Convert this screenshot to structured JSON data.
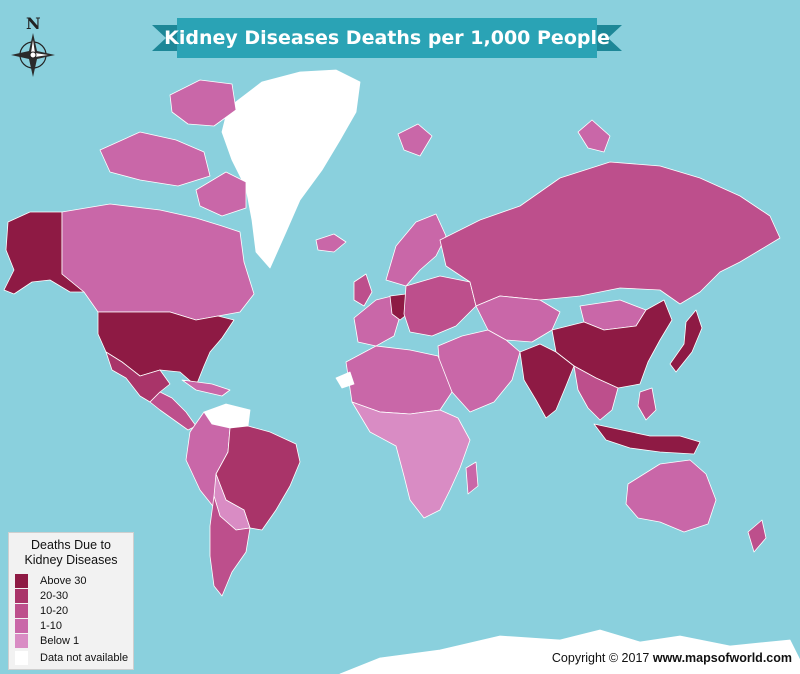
{
  "title": "Kidney Diseases Deaths per 1,000 People",
  "compass": {
    "north_label": "N",
    "icon": "compass-rose-icon"
  },
  "legend": {
    "title_line1": "Deaths Due to",
    "title_line2": "Kidney Diseases",
    "items": [
      {
        "label": "Above 30",
        "color": "#8e1a44"
      },
      {
        "label": "20-30",
        "color": "#a93469"
      },
      {
        "label": "10-20",
        "color": "#bd4f8c"
      },
      {
        "label": "1-10",
        "color": "#c967a8"
      },
      {
        "label": "Below 1",
        "color": "#d98cc4"
      },
      {
        "label": "Data not available",
        "color": "#ffffff"
      }
    ]
  },
  "copyright": {
    "prefix": "Copyright © 2017",
    "site": "www.mapsofworld.com"
  },
  "colors": {
    "ocean": "#8ad0dd",
    "banner": "#2aa3b5",
    "banner_ribbon": "#1d8797"
  }
}
